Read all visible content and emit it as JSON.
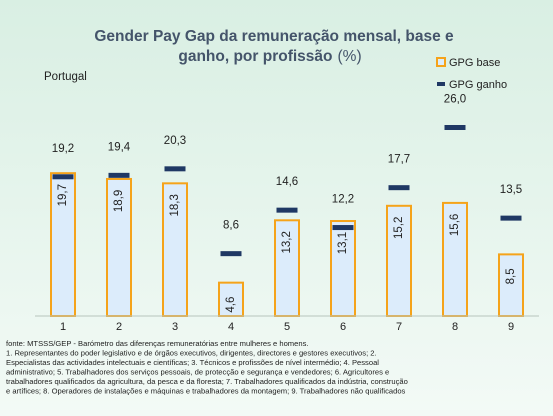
{
  "chart_data": {
    "type": "bar",
    "title": [
      "Gender Pay Gap da remuneração mensal, base e",
      "ganho, por profissão"
    ],
    "title_unit": "(%)",
    "subtitle": "Portugal",
    "categories": [
      "1",
      "2",
      "3",
      "4",
      "5",
      "6",
      "7",
      "8",
      "9"
    ],
    "series": [
      {
        "name": "GPG base",
        "color": "#f5a31a",
        "fill": "#dcecfb",
        "values": [
          19.7,
          18.9,
          18.3,
          4.6,
          13.2,
          13.1,
          15.2,
          15.6,
          8.5
        ],
        "value_labels": [
          "19,7",
          "18,9",
          "18,3",
          "4,6",
          "13,2",
          "13,1",
          "15,2",
          "15,6",
          "8,5"
        ]
      },
      {
        "name": "GPG ganho",
        "color": "#1f3864",
        "values": [
          19.2,
          19.4,
          20.3,
          8.6,
          14.6,
          12.2,
          17.7,
          26.0,
          13.5
        ],
        "value_labels": [
          "19,2",
          "19,4",
          "20,3",
          "8,6",
          "14,6",
          "12,2",
          "17,7",
          "26,0",
          "13,5"
        ]
      }
    ],
    "ylim": [
      0,
      30
    ],
    "legend": "top-right",
    "source": "fonte: MTSSS/GEP - Barómetro das diferenças remuneratórias entre mulheres e homens.",
    "notes": [
      "1. Representantes do poder legislativo e de órgãos executivos, dirigentes, directores e gestores executivos; 2.",
      "Especialistas das actividades intelectuais e científicas; 3. Técnicos e profissões de nível intermédio; 4. Pessoal",
      "administrativo; 5. Trabalhadores dos serviços pessoais, de protecção e segurança e vendedores; 6. Agricultores e",
      "trabalhadores qualificados da agricultura, da pesca e da floresta; 7. Trabalhadores qualificados da indústria, construção",
      "e artífices; 8. Operadores de instalações e máquinas e trabalhadores da montagem; 9. Trabalhadores não qualificados"
    ]
  }
}
